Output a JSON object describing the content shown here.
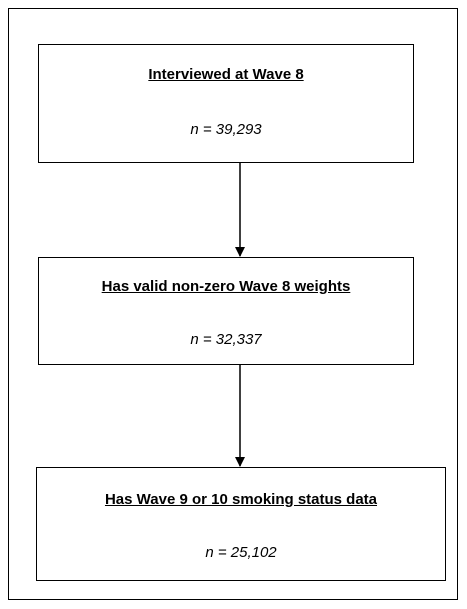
{
  "nodes": [
    {
      "label": "Interviewed at Wave 8",
      "count": "n = 39,293"
    },
    {
      "label": "Has valid non-zero Wave 8 weights",
      "count": "n = 32,337"
    },
    {
      "label": "Has Wave 9 or 10 smoking status data",
      "count": "n = 25,102"
    }
  ]
}
